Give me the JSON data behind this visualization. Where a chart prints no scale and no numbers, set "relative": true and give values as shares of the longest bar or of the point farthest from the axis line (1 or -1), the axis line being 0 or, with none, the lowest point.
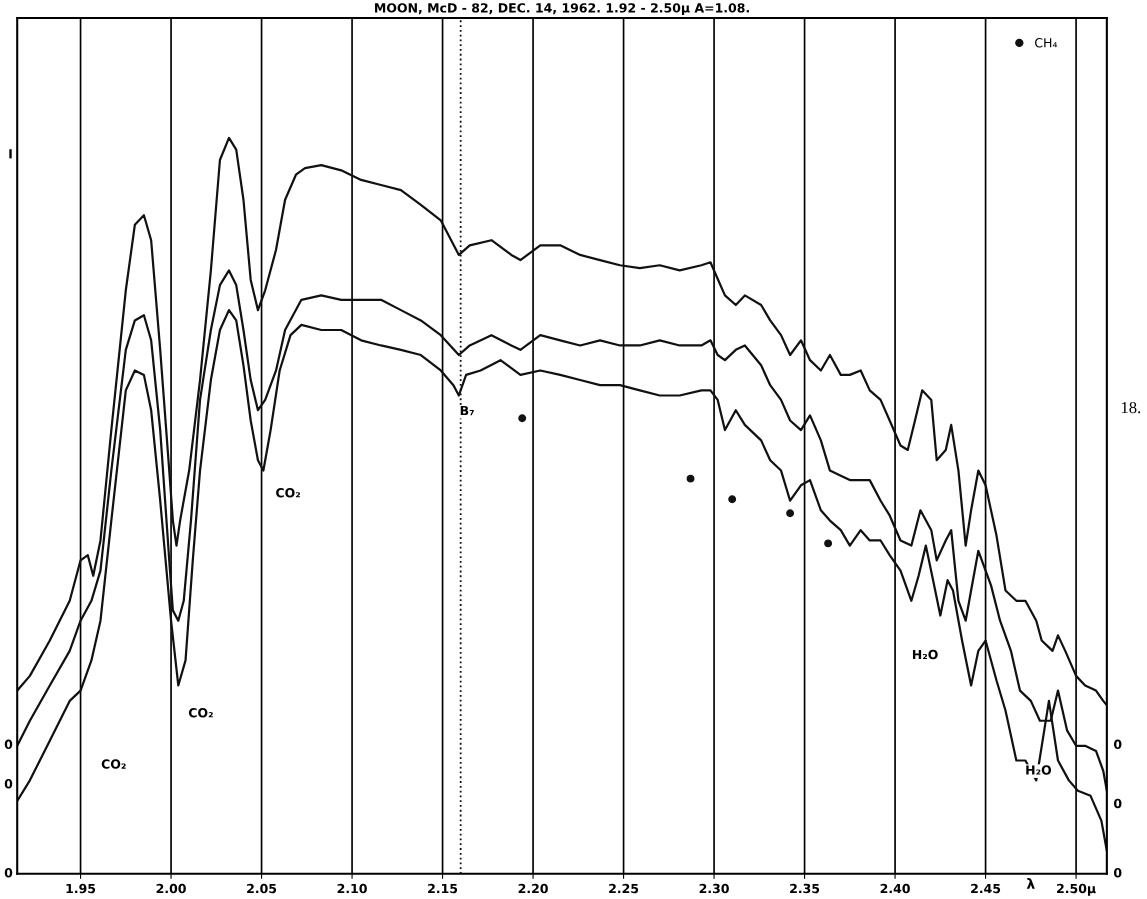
{
  "chart_data": {
    "type": "line",
    "relative": true,
    "title": "MOON, McD - 82, DEC. 14, 1962. 1.92 - 2.50μ A=1.08.",
    "xlabel": "λ",
    "xlim": [
      1.915,
      2.517
    ],
    "xticks": [
      {
        "value": 1.95,
        "label": "1.95"
      },
      {
        "value": 2.0,
        "label": "2.00"
      },
      {
        "value": 2.05,
        "label": "2.05"
      },
      {
        "value": 2.1,
        "label": "2.10"
      },
      {
        "value": 2.15,
        "label": "2.15"
      },
      {
        "value": 2.2,
        "label": "2.20"
      },
      {
        "value": 2.25,
        "label": "2.25"
      },
      {
        "value": 2.3,
        "label": "2.30"
      },
      {
        "value": 2.35,
        "label": "2.35"
      },
      {
        "value": 2.4,
        "label": "2.40"
      },
      {
        "value": 2.45,
        "label": "2.45"
      },
      {
        "value": 2.5,
        "label": "2.50μ"
      }
    ],
    "grid": "x",
    "legend": "top right",
    "line_style": "solid",
    "series": [
      {
        "color": "#111111",
        "x": [
          1.915,
          1.922,
          1.933,
          1.944,
          1.95,
          1.954,
          1.957,
          1.961,
          1.967,
          1.975,
          1.98,
          1.985,
          1.989,
          1.994,
          1.999,
          2.001,
          2.003,
          2.005,
          2.01,
          2.016,
          2.022,
          2.027,
          2.032,
          2.036,
          2.04,
          2.044,
          2.048,
          2.052,
          2.058,
          2.063,
          2.069,
          2.074,
          2.083,
          2.094,
          2.105,
          2.116,
          2.127,
          2.138,
          2.149,
          2.159,
          2.165,
          2.177,
          2.188,
          2.193,
          2.204,
          2.215,
          2.226,
          2.237,
          2.248,
          2.259,
          2.27,
          2.281,
          2.293,
          2.298,
          2.301,
          2.306,
          2.312,
          2.317,
          2.326,
          2.331,
          2.337,
          2.342,
          2.348,
          2.353,
          2.359,
          2.364,
          2.37,
          2.375,
          2.381,
          2.386,
          2.392,
          2.397,
          2.403,
          2.407,
          2.411,
          2.415,
          2.42,
          2.423,
          2.428,
          2.431,
          2.435,
          2.439,
          2.442,
          2.446,
          2.45,
          2.456,
          2.461,
          2.467,
          2.472,
          2.478,
          2.481,
          2.487,
          2.49,
          2.494,
          2.5,
          2.505,
          2.511,
          2.515,
          2.517
        ],
        "values": [
          0.249,
          0.269,
          0.317,
          0.371,
          0.426,
          0.433,
          0.405,
          0.453,
          0.603,
          0.793,
          0.882,
          0.895,
          0.861,
          0.712,
          0.548,
          0.48,
          0.446,
          0.48,
          0.548,
          0.671,
          0.82,
          0.97,
          1.0,
          0.984,
          0.916,
          0.807,
          0.766,
          0.793,
          0.848,
          0.916,
          0.95,
          0.959,
          0.963,
          0.956,
          0.943,
          0.936,
          0.929,
          0.909,
          0.888,
          0.841,
          0.854,
          0.861,
          0.841,
          0.834,
          0.854,
          0.854,
          0.841,
          0.834,
          0.827,
          0.823,
          0.827,
          0.82,
          0.827,
          0.831,
          0.814,
          0.786,
          0.773,
          0.786,
          0.773,
          0.752,
          0.732,
          0.705,
          0.725,
          0.698,
          0.684,
          0.705,
          0.678,
          0.678,
          0.684,
          0.657,
          0.644,
          0.616,
          0.582,
          0.576,
          0.616,
          0.657,
          0.644,
          0.562,
          0.576,
          0.61,
          0.548,
          0.446,
          0.494,
          0.548,
          0.528,
          0.46,
          0.385,
          0.371,
          0.371,
          0.344,
          0.317,
          0.303,
          0.324,
          0.303,
          0.269,
          0.256,
          0.249,
          0.235,
          0.229
        ]
      },
      {
        "color": "#111111",
        "x": [
          1.915,
          1.922,
          1.933,
          1.944,
          1.95,
          1.956,
          1.961,
          1.967,
          1.975,
          1.98,
          1.985,
          1.989,
          1.994,
          1.999,
          2.001,
          2.004,
          2.007,
          2.011,
          2.016,
          2.022,
          2.027,
          2.032,
          2.036,
          2.04,
          2.044,
          2.048,
          2.052,
          2.058,
          2.063,
          2.072,
          2.083,
          2.094,
          2.105,
          2.116,
          2.127,
          2.138,
          2.149,
          2.159,
          2.165,
          2.177,
          2.188,
          2.193,
          2.204,
          2.215,
          2.226,
          2.237,
          2.248,
          2.259,
          2.27,
          2.281,
          2.293,
          2.298,
          2.302,
          2.306,
          2.312,
          2.317,
          2.326,
          2.331,
          2.337,
          2.342,
          2.348,
          2.353,
          2.359,
          2.364,
          2.37,
          2.375,
          2.381,
          2.386,
          2.392,
          2.397,
          2.403,
          2.409,
          2.414,
          2.42,
          2.423,
          2.428,
          2.431,
          2.435,
          2.439,
          2.442,
          2.446,
          2.453,
          2.458,
          2.464,
          2.469,
          2.475,
          2.48,
          2.486,
          2.49,
          2.495,
          2.5,
          2.505,
          2.511,
          2.515,
          2.517
        ],
        "values": [
          0.174,
          0.208,
          0.256,
          0.303,
          0.344,
          0.371,
          0.412,
          0.548,
          0.712,
          0.752,
          0.759,
          0.725,
          0.603,
          0.426,
          0.358,
          0.344,
          0.371,
          0.48,
          0.644,
          0.739,
          0.8,
          0.82,
          0.8,
          0.739,
          0.671,
          0.63,
          0.644,
          0.684,
          0.739,
          0.78,
          0.786,
          0.78,
          0.78,
          0.78,
          0.766,
          0.752,
          0.732,
          0.705,
          0.718,
          0.732,
          0.718,
          0.712,
          0.732,
          0.725,
          0.718,
          0.725,
          0.718,
          0.718,
          0.725,
          0.718,
          0.718,
          0.725,
          0.705,
          0.698,
          0.712,
          0.718,
          0.691,
          0.664,
          0.644,
          0.616,
          0.603,
          0.623,
          0.589,
          0.548,
          0.541,
          0.535,
          0.535,
          0.535,
          0.507,
          0.487,
          0.453,
          0.446,
          0.494,
          0.467,
          0.426,
          0.453,
          0.467,
          0.371,
          0.344,
          0.385,
          0.439,
          0.392,
          0.344,
          0.303,
          0.249,
          0.235,
          0.208,
          0.208,
          0.249,
          0.195,
          0.174,
          0.174,
          0.167,
          0.14,
          0.113
        ]
      },
      {
        "color": "#111111",
        "x": [
          1.915,
          1.922,
          1.933,
          1.944,
          1.95,
          1.956,
          1.961,
          1.967,
          1.975,
          1.98,
          1.985,
          1.989,
          1.994,
          2.0,
          2.004,
          2.008,
          2.012,
          2.016,
          2.022,
          2.027,
          2.032,
          2.036,
          2.04,
          2.044,
          2.048,
          2.051,
          2.055,
          2.06,
          2.066,
          2.072,
          2.083,
          2.094,
          2.105,
          2.116,
          2.127,
          2.138,
          2.149,
          2.156,
          2.159,
          2.163,
          2.171,
          2.182,
          2.193,
          2.204,
          2.215,
          2.226,
          2.237,
          2.248,
          2.259,
          2.27,
          2.281,
          2.293,
          2.298,
          2.302,
          2.306,
          2.312,
          2.317,
          2.326,
          2.331,
          2.337,
          2.342,
          2.348,
          2.353,
          2.359,
          2.364,
          2.37,
          2.375,
          2.381,
          2.386,
          2.392,
          2.397,
          2.403,
          2.409,
          2.413,
          2.417,
          2.421,
          2.425,
          2.429,
          2.432,
          2.437,
          2.442,
          2.446,
          2.45,
          2.456,
          2.461,
          2.467,
          2.472,
          2.478,
          2.485,
          2.49,
          2.496,
          2.501,
          2.508,
          2.514,
          2.517
        ],
        "values": [
          0.099,
          0.127,
          0.181,
          0.235,
          0.249,
          0.29,
          0.344,
          0.48,
          0.657,
          0.684,
          0.678,
          0.63,
          0.507,
          0.344,
          0.256,
          0.29,
          0.426,
          0.548,
          0.671,
          0.739,
          0.766,
          0.752,
          0.691,
          0.616,
          0.562,
          0.548,
          0.603,
          0.684,
          0.732,
          0.746,
          0.739,
          0.739,
          0.725,
          0.718,
          0.712,
          0.705,
          0.684,
          0.664,
          0.65,
          0.678,
          0.684,
          0.698,
          0.678,
          0.684,
          0.678,
          0.671,
          0.664,
          0.664,
          0.657,
          0.65,
          0.65,
          0.657,
          0.657,
          0.644,
          0.603,
          0.63,
          0.61,
          0.589,
          0.562,
          0.548,
          0.507,
          0.528,
          0.535,
          0.494,
          0.48,
          0.467,
          0.446,
          0.467,
          0.453,
          0.453,
          0.433,
          0.412,
          0.371,
          0.405,
          0.446,
          0.399,
          0.351,
          0.399,
          0.385,
          0.317,
          0.256,
          0.303,
          0.317,
          0.263,
          0.222,
          0.154,
          0.154,
          0.127,
          0.235,
          0.154,
          0.127,
          0.113,
          0.106,
          0.072,
          0.031
        ]
      },
      {
        "type": "scatter",
        "name": "CH₄",
        "color": "#111111",
        "marker": "circle",
        "x": [
          2.194,
          2.287,
          2.31,
          2.342,
          2.363
        ],
        "values": [
          0.619,
          0.537,
          0.509,
          0.49,
          0.449
        ]
      }
    ],
    "ref_lines": [
      {
        "axis": "x",
        "value": 2.16,
        "line_style": "dotted",
        "color": "#111111"
      }
    ],
    "annotations": [
      "I",
      "0",
      "0",
      "0",
      "0",
      "0",
      "0",
      "CO₂",
      "CO₂",
      "CO₂",
      "B₇",
      "H₂O",
      "H₂O",
      "18."
    ]
  }
}
